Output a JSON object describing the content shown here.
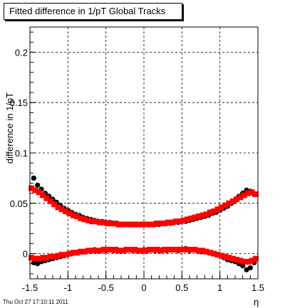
{
  "title": "Fitted difference in 1/pT  Global Tracks",
  "timestamp": "Thu Oct 27 17:10:11 2011",
  "chart_data": {
    "type": "scatter",
    "title": "Fitted difference in 1/pT  Global Tracks",
    "xlabel": "η",
    "ylabel": "difference in 1/pT",
    "xlim": [
      -1.5,
      1.5
    ],
    "ylim": [
      -0.025,
      0.225
    ],
    "grid": true,
    "x_ticks": [
      "-1.5",
      "-1",
      "-0.5",
      "0",
      "0.5",
      "1",
      "1.5"
    ],
    "y_ticks": [
      "0",
      "0.05",
      "0.1",
      "0.15",
      "0.2"
    ],
    "colors": {
      "black": "#000000",
      "red": "#ff0000"
    },
    "series": [
      {
        "color": "#000000",
        "marker": "circle",
        "x": [
          -1.45,
          -1.4,
          -1.35,
          -1.3,
          -1.25,
          -1.2,
          -1.15,
          -1.1,
          -1.05,
          -1.0,
          -0.95,
          -0.9,
          -0.85,
          -0.8,
          -0.75,
          -0.7,
          -0.65,
          -0.6,
          -0.55,
          -0.5,
          -0.45,
          -0.4,
          -0.35,
          -0.3,
          -0.25,
          -0.2,
          -0.15,
          -0.1,
          -0.05,
          0.0,
          0.05,
          0.1,
          0.15,
          0.2,
          0.25,
          0.3,
          0.35,
          0.4,
          0.45,
          0.5,
          0.55,
          0.6,
          0.65,
          0.7,
          0.75,
          0.8,
          0.85,
          0.9,
          0.95,
          1.0,
          1.05,
          1.1,
          1.15,
          1.2,
          1.25,
          1.3,
          1.35,
          1.4,
          1.45
        ],
        "y": [
          0.075,
          0.068,
          0.064,
          0.06,
          0.057,
          0.054,
          0.051,
          0.048,
          0.045,
          0.043,
          0.041,
          0.039,
          0.038,
          0.036,
          0.035,
          0.034,
          0.033,
          0.032,
          0.032,
          0.031,
          0.031,
          0.03,
          0.03,
          0.029,
          0.029,
          0.029,
          0.029,
          0.029,
          0.029,
          0.029,
          0.029,
          0.029,
          0.029,
          0.029,
          0.03,
          0.03,
          0.03,
          0.031,
          0.031,
          0.032,
          0.032,
          0.033,
          0.034,
          0.035,
          0.036,
          0.037,
          0.038,
          0.04,
          0.041,
          0.043,
          0.045,
          0.047,
          0.05,
          0.053,
          0.057,
          0.06,
          0.063,
          0.062,
          0.059
        ]
      },
      {
        "color": "#ff0000",
        "marker": "square",
        "x": [
          -1.48,
          -1.43,
          -1.38,
          -1.33,
          -1.28,
          -1.23,
          -1.18,
          -1.13,
          -1.08,
          -1.03,
          -0.98,
          -0.93,
          -0.88,
          -0.83,
          -0.78,
          -0.73,
          -0.68,
          -0.63,
          -0.58,
          -0.53,
          -0.48,
          -0.43,
          -0.38,
          -0.33,
          -0.28,
          -0.23,
          -0.18,
          -0.13,
          -0.08,
          -0.03,
          0.02,
          0.07,
          0.12,
          0.17,
          0.22,
          0.27,
          0.32,
          0.37,
          0.42,
          0.47,
          0.52,
          0.57,
          0.62,
          0.67,
          0.72,
          0.77,
          0.82,
          0.87,
          0.92,
          0.97,
          1.02,
          1.07,
          1.12,
          1.17,
          1.22,
          1.27,
          1.32,
          1.37,
          1.42,
          1.47
        ],
        "y": [
          0.065,
          0.063,
          0.061,
          0.058,
          0.055,
          0.052,
          0.049,
          0.046,
          0.044,
          0.042,
          0.04,
          0.038,
          0.037,
          0.035,
          0.034,
          0.033,
          0.032,
          0.032,
          0.031,
          0.031,
          0.03,
          0.03,
          0.03,
          0.029,
          0.029,
          0.029,
          0.029,
          0.029,
          0.029,
          0.029,
          0.029,
          0.029,
          0.029,
          0.03,
          0.03,
          0.03,
          0.031,
          0.031,
          0.032,
          0.032,
          0.033,
          0.034,
          0.035,
          0.036,
          0.037,
          0.038,
          0.039,
          0.041,
          0.042,
          0.044,
          0.046,
          0.048,
          0.05,
          0.052,
          0.054,
          0.056,
          0.058,
          0.06,
          0.061,
          0.059
        ]
      },
      {
        "color": "#000000",
        "marker": "circle",
        "x": [
          -1.45,
          -1.4,
          -1.35,
          -1.3,
          -1.25,
          -1.2,
          -1.15,
          -1.1,
          -1.05,
          -1.0,
          -0.95,
          -0.9,
          -0.85,
          -0.8,
          -0.75,
          -0.7,
          -0.65,
          -0.6,
          -0.55,
          -0.5,
          -0.45,
          -0.4,
          -0.35,
          -0.3,
          -0.25,
          -0.2,
          -0.15,
          -0.1,
          -0.05,
          0.0,
          0.05,
          0.1,
          0.15,
          0.2,
          0.25,
          0.3,
          0.35,
          0.4,
          0.45,
          0.5,
          0.55,
          0.6,
          0.65,
          0.7,
          0.75,
          0.8,
          0.85,
          0.9,
          0.95,
          1.0,
          1.05,
          1.1,
          1.15,
          1.2,
          1.25,
          1.3,
          1.35,
          1.4,
          1.45
        ],
        "y": [
          -0.009,
          -0.01,
          -0.008,
          -0.007,
          -0.006,
          -0.005,
          -0.004,
          -0.003,
          -0.002,
          -0.001,
          0.0,
          0.001,
          0.002,
          0.002,
          0.003,
          0.003,
          0.004,
          0.003,
          0.004,
          0.003,
          0.004,
          0.003,
          0.004,
          0.003,
          0.003,
          0.004,
          0.003,
          0.004,
          0.003,
          0.004,
          0.003,
          0.004,
          0.003,
          0.004,
          0.004,
          0.003,
          0.004,
          0.004,
          0.003,
          0.004,
          0.005,
          0.003,
          0.004,
          0.003,
          0.002,
          0.002,
          0.001,
          0.0,
          -0.001,
          -0.002,
          -0.004,
          -0.006,
          -0.007,
          -0.008,
          -0.01,
          -0.012,
          -0.016,
          -0.014,
          -0.009
        ]
      },
      {
        "color": "#ff0000",
        "marker": "square",
        "x": [
          -1.48,
          -1.43,
          -1.38,
          -1.33,
          -1.28,
          -1.23,
          -1.18,
          -1.13,
          -1.08,
          -1.03,
          -0.98,
          -0.93,
          -0.88,
          -0.83,
          -0.78,
          -0.73,
          -0.68,
          -0.63,
          -0.58,
          -0.53,
          -0.48,
          -0.43,
          -0.38,
          -0.33,
          -0.28,
          -0.23,
          -0.18,
          -0.13,
          -0.08,
          -0.03,
          0.02,
          0.07,
          0.12,
          0.17,
          0.22,
          0.27,
          0.32,
          0.37,
          0.42,
          0.47,
          0.52,
          0.57,
          0.62,
          0.67,
          0.72,
          0.77,
          0.82,
          0.87,
          0.92,
          0.97,
          1.02,
          1.07,
          1.12,
          1.17,
          1.22,
          1.27,
          1.32,
          1.37,
          1.42,
          1.47
        ],
        "y": [
          -0.004,
          -0.005,
          -0.005,
          -0.004,
          -0.004,
          -0.003,
          -0.003,
          -0.002,
          -0.001,
          -0.001,
          0.0,
          0.001,
          0.001,
          0.002,
          0.002,
          0.003,
          0.003,
          0.003,
          0.003,
          0.004,
          0.004,
          0.004,
          0.004,
          0.003,
          0.003,
          0.004,
          0.004,
          0.004,
          0.003,
          0.003,
          0.003,
          0.004,
          0.004,
          0.004,
          0.003,
          0.004,
          0.004,
          0.004,
          0.004,
          0.004,
          0.004,
          0.004,
          0.004,
          0.004,
          0.003,
          0.003,
          0.002,
          0.001,
          0.0,
          -0.001,
          -0.002,
          -0.003,
          -0.004,
          -0.005,
          -0.006,
          -0.007,
          -0.008,
          -0.008,
          -0.007,
          -0.005
        ]
      }
    ]
  }
}
